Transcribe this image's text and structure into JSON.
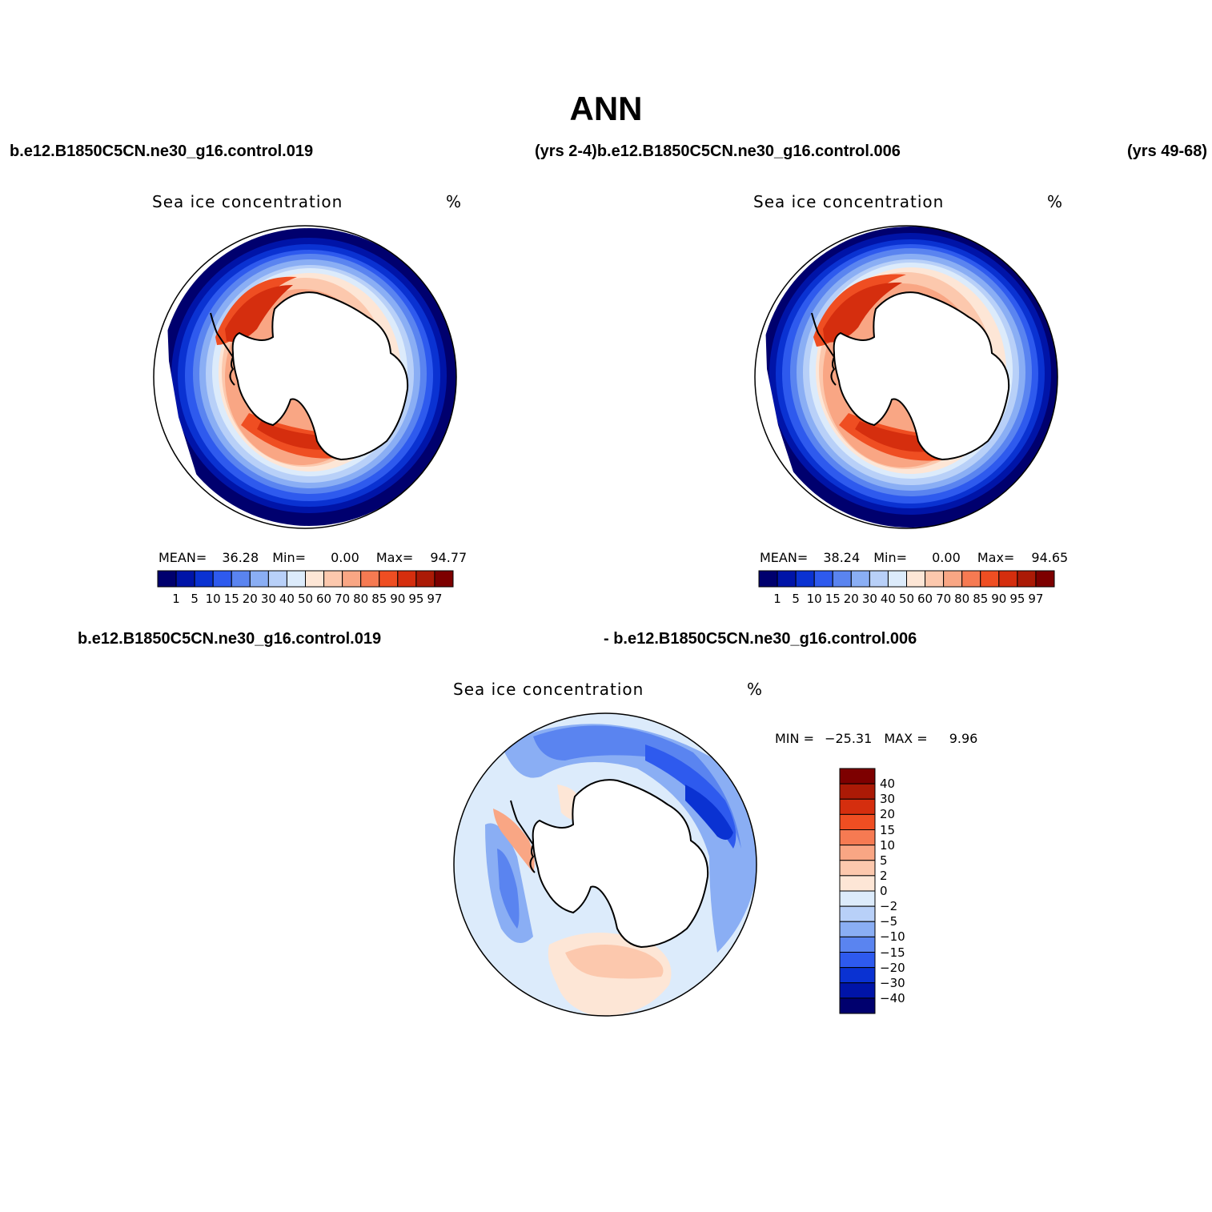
{
  "title": "ANN",
  "run_labels": {
    "top_left": "b.e12.B1850C5CN.ne30_g16.control.019",
    "top_mid": "(yrs 2-4)b.e12.B1850C5CN.ne30_g16.control.006",
    "top_right": "(yrs 49-68)",
    "bottom_left": "b.e12.B1850C5CN.ne30_g16.control.019",
    "bottom_right": "- b.e12.B1850C5CN.ne30_g16.control.006"
  },
  "panels": [
    {
      "variable": "Sea ice concentration",
      "unit": "%",
      "mean_label": "MEAN=",
      "mean": "36.28",
      "min_label": "Min=",
      "min": "0.00",
      "max_label": "Max=",
      "max": "94.77"
    },
    {
      "variable": "Sea ice concentration",
      "unit": "%",
      "mean_label": "MEAN=",
      "mean": "38.24",
      "min_label": "Min=",
      "min": "0.00",
      "max_label": "Max=",
      "max": "94.65"
    }
  ],
  "diff_panel": {
    "variable": "Sea ice concentration",
    "unit": "%",
    "min_label": "MIN =",
    "min": "−25.31",
    "max_label": "MAX =",
    "max": "9.96"
  },
  "colorbar_abs": {
    "ticks": [
      "1",
      "5",
      "10",
      "15",
      "20",
      "30",
      "40",
      "50",
      "60",
      "70",
      "80",
      "85",
      "90",
      "95",
      "97"
    ],
    "colors": [
      "#00006e",
      "#0014a8",
      "#0a32d2",
      "#2e5aee",
      "#5a84f0",
      "#8aaef4",
      "#b8d0f8",
      "#dcebfb",
      "#fde6d6",
      "#fcc8ad",
      "#f9a684",
      "#f67a52",
      "#ef4e22",
      "#d52e0e",
      "#ab1a06",
      "#7d0000"
    ]
  },
  "colorbar_diff": {
    "ticks": [
      "40",
      "30",
      "20",
      "15",
      "10",
      "5",
      "2",
      "0",
      "−2",
      "−5",
      "−10",
      "−15",
      "−20",
      "−30",
      "−40"
    ],
    "colors": [
      "#7d0000",
      "#ab1a06",
      "#d52e0e",
      "#ef4e22",
      "#f67a52",
      "#f9a684",
      "#fcc8ad",
      "#fde6d6",
      "#dcebfb",
      "#b8d0f8",
      "#8aaef4",
      "#5a84f0",
      "#2e5aee",
      "#0a32d2",
      "#0014a8",
      "#00006e"
    ]
  }
}
